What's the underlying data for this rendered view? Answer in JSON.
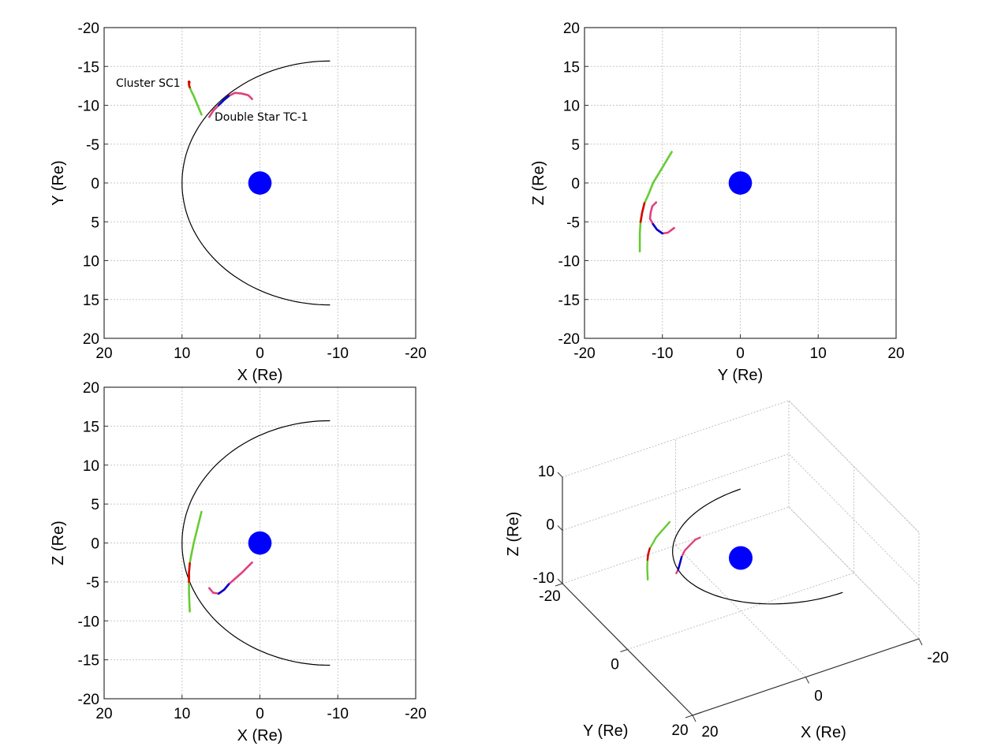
{
  "colors": {
    "earth": "#0000ff",
    "bow_shock": "#000000",
    "cluster": "#66cc33",
    "cluster_highlight": "#dd0000",
    "double_star": "#e0407f",
    "double_star_highlight": "#0000cc",
    "grid": "#c8c8c8"
  },
  "chart_data": [
    {
      "type": "line",
      "panel": "XY",
      "xlabel": "X  (Re)",
      "ylabel": "Y  (Re)",
      "xlim": [
        20,
        -20
      ],
      "ylim": [
        20,
        -20
      ],
      "xticks": [
        "20",
        "10",
        "0",
        "-10",
        "-20"
      ],
      "yticks": [
        "-20",
        "-15",
        "-10",
        "-5",
        "0",
        "5",
        "10",
        "15",
        "20"
      ],
      "grid": true,
      "annotations": [
        "Cluster SC1",
        "Double Star TC-1"
      ]
    },
    {
      "type": "line",
      "panel": "YZ",
      "xlabel": "Y  (Re)",
      "ylabel": "Z  (Re)",
      "xlim": [
        -20,
        20
      ],
      "ylim": [
        -20,
        20
      ],
      "xticks": [
        "-20",
        "-10",
        "0",
        "10",
        "20"
      ],
      "yticks": [
        "20",
        "15",
        "10",
        "5",
        "0",
        "-5",
        "-10",
        "-15",
        "-20"
      ],
      "grid": true
    },
    {
      "type": "line",
      "panel": "XZ",
      "xlabel": "X  (Re)",
      "ylabel": "Z  (Re)",
      "xlim": [
        20,
        -20
      ],
      "ylim": [
        -20,
        20
      ],
      "xticks": [
        "20",
        "10",
        "0",
        "-10",
        "-20"
      ],
      "yticks": [
        "20",
        "15",
        "10",
        "5",
        "0",
        "-5",
        "-10",
        "-15",
        "-20"
      ],
      "grid": true
    },
    {
      "type": "line",
      "panel": "3D",
      "xlabel": "X  (Re)",
      "ylabel": "Y  (Re)",
      "zlabel": "Z  (Re)",
      "xlim": [
        20,
        -20
      ],
      "ylim": [
        -20,
        20
      ],
      "zlim": [
        -10,
        10
      ],
      "xticks": [
        "20",
        "0",
        "-20"
      ],
      "yticks": [
        "-20",
        "0",
        "20"
      ],
      "zticks": [
        "10",
        "0",
        "-10"
      ],
      "grid": true
    }
  ],
  "series": {
    "earth": {
      "name": "Earth",
      "center": [
        0,
        0,
        0
      ],
      "radius_re": 1.5
    },
    "bow_shock": {
      "name": "Bow shock",
      "nose_x": 10,
      "tail_x": -9,
      "flank_halfwidth": 15.7
    },
    "cluster": {
      "name": "Cluster SC1",
      "points": [
        [
          7.5,
          -8.8,
          4.0
        ],
        [
          8.0,
          -10.0,
          2.0
        ],
        [
          8.5,
          -11.2,
          0.0
        ],
        [
          8.8,
          -11.8,
          -1.5
        ],
        [
          9.0,
          -12.3,
          -2.6
        ],
        [
          9.1,
          -12.6,
          -3.8
        ],
        [
          9.1,
          -12.8,
          -5.0
        ],
        [
          9.1,
          -12.9,
          -6.5
        ],
        [
          9.0,
          -12.9,
          -8.8
        ]
      ],
      "highlight_range": [
        4,
        6
      ]
    },
    "double_star": {
      "name": "Double Star TC-1",
      "points": [
        [
          6.5,
          -8.5,
          -5.8
        ],
        [
          6.0,
          -9.3,
          -6.4
        ],
        [
          5.3,
          -10.0,
          -6.5
        ],
        [
          4.6,
          -10.7,
          -6.0
        ],
        [
          4.0,
          -11.2,
          -5.3
        ],
        [
          3.2,
          -11.6,
          -4.6
        ],
        [
          2.3,
          -11.5,
          -3.8
        ],
        [
          1.5,
          -11.3,
          -3.0
        ],
        [
          1.0,
          -10.8,
          -2.5
        ]
      ],
      "highlight_range": [
        2,
        4
      ]
    }
  }
}
